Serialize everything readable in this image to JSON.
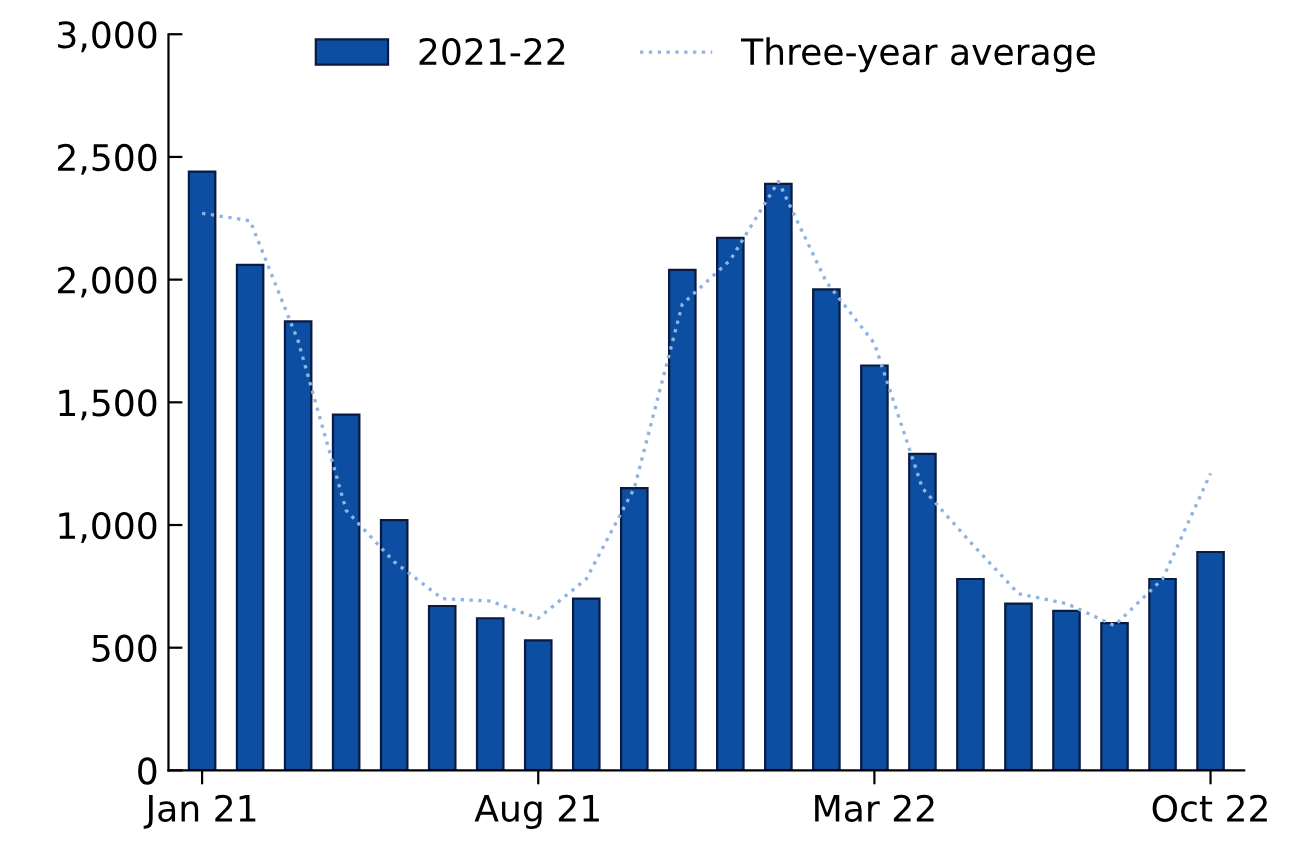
{
  "chart_data": {
    "type": "bar",
    "categories": [
      "Jan 21",
      null,
      null,
      null,
      null,
      null,
      null,
      "Aug 21",
      null,
      null,
      null,
      null,
      null,
      null,
      "Mar 22",
      null,
      null,
      null,
      null,
      null,
      null,
      "Oct 22"
    ],
    "series": [
      {
        "name": "2021-22",
        "color": "#0b4ea2",
        "values": [
          2440,
          2060,
          1830,
          1450,
          1020,
          670,
          620,
          530,
          700,
          1150,
          2040,
          2170,
          2390,
          1960,
          1650,
          1290,
          780,
          680,
          650,
          600,
          780,
          890
        ]
      },
      {
        "name": "Three-year average",
        "type": "line",
        "color": "#8db4e2",
        "line_style": "dotted",
        "values": [
          2270,
          2240,
          1750,
          1060,
          850,
          700,
          690,
          620,
          780,
          1150,
          1900,
          2080,
          2400,
          1990,
          1740,
          1150,
          930,
          720,
          680,
          590,
          780,
          1210
        ]
      }
    ],
    "ylim": [
      0,
      3000
    ],
    "yticks": [
      0,
      {
        "value": 500,
        "label": "500"
      },
      {
        "value": 1000,
        "label": "1,000"
      },
      {
        "value": 1500,
        "label": "1,500"
      },
      {
        "value": 2000,
        "label": "2,000"
      },
      {
        "value": 2500,
        "label": "2,500"
      },
      {
        "value": 3000,
        "label": "3,000"
      }
    ],
    "grid": false,
    "legend": "top"
  }
}
